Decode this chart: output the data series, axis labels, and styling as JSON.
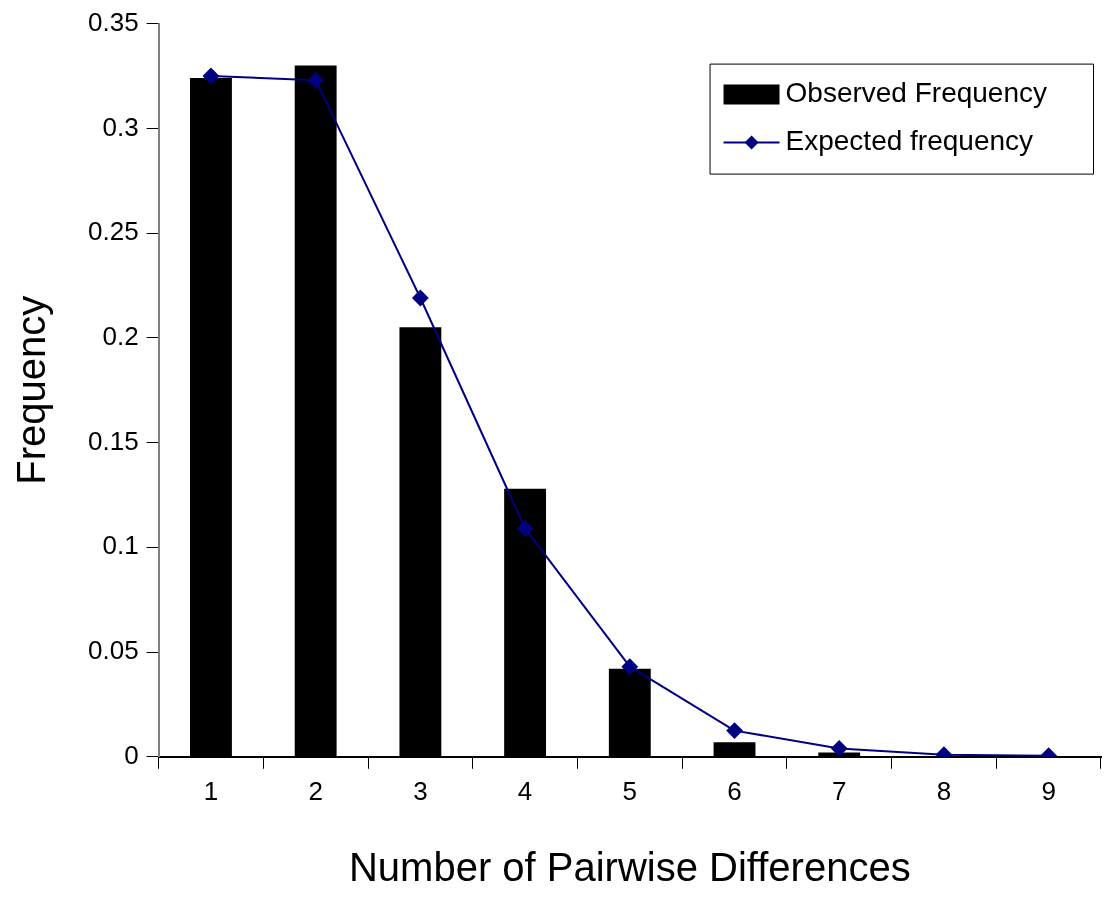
{
  "chart_data": {
    "type": "bar",
    "xlabel": "Number of Pairwise Differences",
    "ylabel": "Frequency",
    "categories": [
      "1",
      "2",
      "3",
      "4",
      "5",
      "6",
      "7",
      "8",
      "9"
    ],
    "series": [
      {
        "name": "Observed Frequency",
        "color": "#000000",
        "values": [
          0.324,
          0.33,
          0.205,
          0.128,
          0.042,
          0.007,
          0.002,
          0,
          0
        ]
      },
      {
        "name": "Expected frequency",
        "type": "line",
        "color": "#000080",
        "marker": "diamond",
        "values": [
          0.325,
          0.323,
          0.219,
          0.109,
          0.043,
          0.0125,
          0.004,
          0.001,
          0.0005
        ]
      }
    ],
    "ylim": [
      0,
      0.35
    ],
    "yticks": [
      0,
      0.05,
      0.1,
      0.15,
      0.2,
      0.25,
      0.3,
      0.35
    ],
    "grid": false,
    "legend": "top right"
  }
}
